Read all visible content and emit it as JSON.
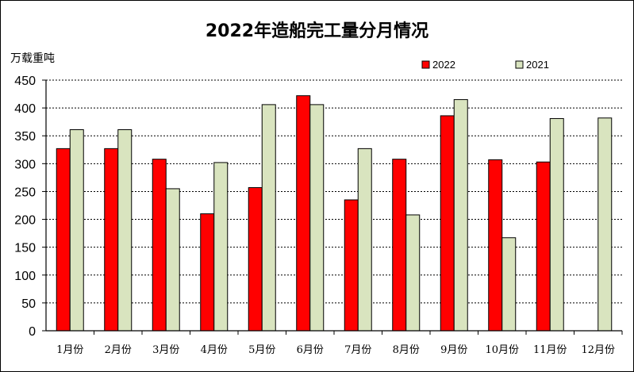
{
  "chart_data": {
    "type": "bar",
    "title": "2022年造船完工量分月情况",
    "ylabel": "万载重吨",
    "xlabel": "",
    "ylim": [
      0,
      450
    ],
    "yticks": [
      0,
      50,
      100,
      150,
      200,
      250,
      300,
      350,
      400,
      450
    ],
    "grid": "horizontal-dashed",
    "legend_position": "top-right",
    "categories": [
      "1月份",
      "2月份",
      "3月份",
      "4月份",
      "5月份",
      "6月份",
      "7月份",
      "8月份",
      "9月份",
      "10月份",
      "11月份",
      "12月份"
    ],
    "series": [
      {
        "name": "2022",
        "color": "#ff0000",
        "values": [
          327,
          327,
          308,
          210,
          257,
          422,
          235,
          308,
          386,
          307,
          303,
          null
        ]
      },
      {
        "name": "2021",
        "color": "#d9e4bf",
        "values": [
          361,
          361,
          255,
          302,
          406,
          406,
          327,
          208,
          415,
          167,
          381,
          382
        ]
      }
    ]
  }
}
